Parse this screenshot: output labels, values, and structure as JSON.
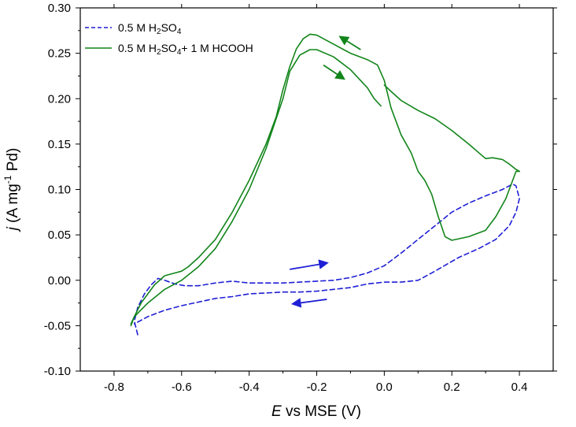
{
  "chart_data": {
    "type": "line",
    "title": "",
    "xlabel": {
      "symbol": "E",
      "rest": " vs MSE (V)"
    },
    "ylabel": {
      "symbol": "j",
      "rest": " (A mg",
      "sup": "-1",
      "tail": " Pd)"
    },
    "xlim": [
      -0.9,
      0.5
    ],
    "ylim": [
      -0.1,
      0.3
    ],
    "xticks": [
      -0.8,
      -0.6,
      -0.4,
      -0.2,
      0.0,
      0.2,
      0.4
    ],
    "xtick_labels": [
      "-0.8",
      "-0.6",
      "-0.4",
      "-0.2",
      "0.0",
      "0.2",
      "0.4"
    ],
    "yticks": [
      -0.1,
      -0.05,
      0.0,
      0.05,
      0.1,
      0.15,
      0.2,
      0.25,
      0.3
    ],
    "ytick_labels": [
      "-0.10",
      "-0.05",
      "0.00",
      "0.05",
      "0.10",
      "0.15",
      "0.20",
      "0.25",
      "0.30"
    ],
    "legend_position": "top-left",
    "series": [
      {
        "name": "0.5 M H2SO4",
        "legend_parts": [
          "0.5 M H",
          "2",
          "SO",
          "4",
          ""
        ],
        "color": "#1f1fd6",
        "style": "dashed",
        "segments": [
          [
            [
              -0.73,
              -0.06
            ],
            [
              -0.74,
              -0.045
            ],
            [
              -0.73,
              -0.03
            ],
            [
              -0.71,
              -0.015
            ],
            [
              -0.69,
              -0.005
            ],
            [
              -0.67,
              0.002
            ],
            [
              -0.65,
              0.0
            ],
            [
              -0.62,
              -0.004
            ],
            [
              -0.59,
              -0.006
            ],
            [
              -0.55,
              -0.006
            ],
            [
              -0.5,
              -0.003
            ],
            [
              -0.45,
              -0.001
            ],
            [
              -0.4,
              -0.003
            ],
            [
              -0.35,
              -0.003
            ],
            [
              -0.3,
              -0.003
            ],
            [
              -0.25,
              -0.002
            ],
            [
              -0.2,
              -0.001
            ],
            [
              -0.15,
              0.0
            ],
            [
              -0.1,
              0.003
            ],
            [
              -0.05,
              0.008
            ],
            [
              0.0,
              0.016
            ],
            [
              0.05,
              0.03
            ],
            [
              0.1,
              0.045
            ],
            [
              0.15,
              0.06
            ],
            [
              0.2,
              0.075
            ],
            [
              0.25,
              0.085
            ],
            [
              0.3,
              0.093
            ],
            [
              0.35,
              0.1
            ],
            [
              0.38,
              0.106
            ],
            [
              0.39,
              0.104
            ],
            [
              0.4,
              0.09
            ],
            [
              0.39,
              0.075
            ],
            [
              0.37,
              0.06
            ],
            [
              0.33,
              0.045
            ],
            [
              0.28,
              0.035
            ],
            [
              0.22,
              0.025
            ],
            [
              0.15,
              0.01
            ],
            [
              0.1,
              0.0
            ],
            [
              0.05,
              -0.002
            ],
            [
              0.0,
              -0.002
            ],
            [
              -0.05,
              -0.004
            ],
            [
              -0.1,
              -0.008
            ],
            [
              -0.15,
              -0.01
            ],
            [
              -0.2,
              -0.012
            ],
            [
              -0.25,
              -0.013
            ],
            [
              -0.3,
              -0.013
            ],
            [
              -0.35,
              -0.014
            ],
            [
              -0.4,
              -0.015
            ],
            [
              -0.45,
              -0.018
            ],
            [
              -0.5,
              -0.02
            ],
            [
              -0.55,
              -0.024
            ],
            [
              -0.6,
              -0.028
            ],
            [
              -0.65,
              -0.033
            ],
            [
              -0.7,
              -0.04
            ],
            [
              -0.74,
              -0.048
            ]
          ]
        ]
      },
      {
        "name": "0.5 M H2SO4+ 1 M HCOOH",
        "legend_parts": [
          "0.5 M H",
          "2",
          "SO",
          "4",
          "+ 1 M HCOOH"
        ],
        "color": "#12851a",
        "style": "solid",
        "segments": [
          [
            [
              -0.75,
              -0.05
            ],
            [
              -0.74,
              -0.04
            ],
            [
              -0.72,
              -0.025
            ],
            [
              -0.7,
              -0.015
            ],
            [
              -0.68,
              -0.005
            ],
            [
              -0.65,
              0.005
            ],
            [
              -0.62,
              0.008
            ],
            [
              -0.6,
              0.01
            ],
            [
              -0.58,
              0.015
            ],
            [
              -0.55,
              0.025
            ],
            [
              -0.5,
              0.045
            ],
            [
              -0.45,
              0.075
            ],
            [
              -0.4,
              0.11
            ],
            [
              -0.35,
              0.15
            ],
            [
              -0.32,
              0.18
            ],
            [
              -0.3,
              0.21
            ],
            [
              -0.28,
              0.235
            ],
            [
              -0.26,
              0.255
            ],
            [
              -0.24,
              0.266
            ],
            [
              -0.22,
              0.271
            ],
            [
              -0.2,
              0.27
            ],
            [
              -0.18,
              0.266
            ],
            [
              -0.15,
              0.26
            ],
            [
              -0.12,
              0.254
            ],
            [
              -0.1,
              0.25
            ],
            [
              -0.05,
              0.243
            ],
            [
              -0.02,
              0.237
            ],
            [
              0.0,
              0.22
            ],
            [
              0.02,
              0.19
            ],
            [
              0.05,
              0.16
            ],
            [
              0.08,
              0.14
            ],
            [
              0.1,
              0.12
            ],
            [
              0.12,
              0.11
            ],
            [
              0.14,
              0.095
            ],
            [
              0.16,
              0.07
            ],
            [
              0.18,
              0.048
            ],
            [
              0.2,
              0.044
            ],
            [
              0.25,
              0.048
            ],
            [
              0.3,
              0.055
            ],
            [
              0.33,
              0.07
            ],
            [
              0.36,
              0.09
            ],
            [
              0.38,
              0.11
            ],
            [
              0.39,
              0.12
            ],
            [
              0.4,
              0.12
            ]
          ],
          [
            [
              0.4,
              0.12
            ],
            [
              0.39,
              0.122
            ],
            [
              0.37,
              0.128
            ],
            [
              0.35,
              0.133
            ],
            [
              0.32,
              0.135
            ],
            [
              0.3,
              0.134
            ],
            [
              0.25,
              0.15
            ],
            [
              0.2,
              0.165
            ],
            [
              0.15,
              0.178
            ],
            [
              0.1,
              0.187
            ],
            [
              0.05,
              0.198
            ],
            [
              0.02,
              0.208
            ],
            [
              0.0,
              0.215
            ]
          ],
          [
            [
              -0.01,
              0.192
            ],
            [
              -0.03,
              0.2
            ],
            [
              -0.05,
              0.212
            ],
            [
              -0.1,
              0.232
            ],
            [
              -0.15,
              0.246
            ],
            [
              -0.2,
              0.254
            ],
            [
              -0.22,
              0.254
            ],
            [
              -0.25,
              0.248
            ],
            [
              -0.28,
              0.23
            ],
            [
              -0.3,
              0.2
            ],
            [
              -0.35,
              0.145
            ],
            [
              -0.4,
              0.1
            ],
            [
              -0.45,
              0.065
            ],
            [
              -0.5,
              0.035
            ],
            [
              -0.55,
              0.015
            ],
            [
              -0.6,
              0.0
            ],
            [
              -0.65,
              -0.01
            ],
            [
              -0.7,
              -0.025
            ],
            [
              -0.74,
              -0.04
            ],
            [
              -0.75,
              -0.048
            ]
          ]
        ]
      }
    ],
    "annotations": [
      {
        "type": "arrow",
        "color": "#12851a",
        "from": [
          -0.07,
          0.254
        ],
        "to": [
          -0.13,
          0.268
        ]
      },
      {
        "type": "arrow",
        "color": "#12851a",
        "from": [
          -0.18,
          0.237
        ],
        "to": [
          -0.12,
          0.222
        ]
      },
      {
        "type": "arrow",
        "color": "#1f1fd6",
        "from": [
          -0.28,
          0.012
        ],
        "to": [
          -0.17,
          0.019
        ]
      },
      {
        "type": "arrow",
        "color": "#1f1fd6",
        "from": [
          -0.17,
          -0.021
        ],
        "to": [
          -0.27,
          -0.026
        ]
      }
    ]
  }
}
